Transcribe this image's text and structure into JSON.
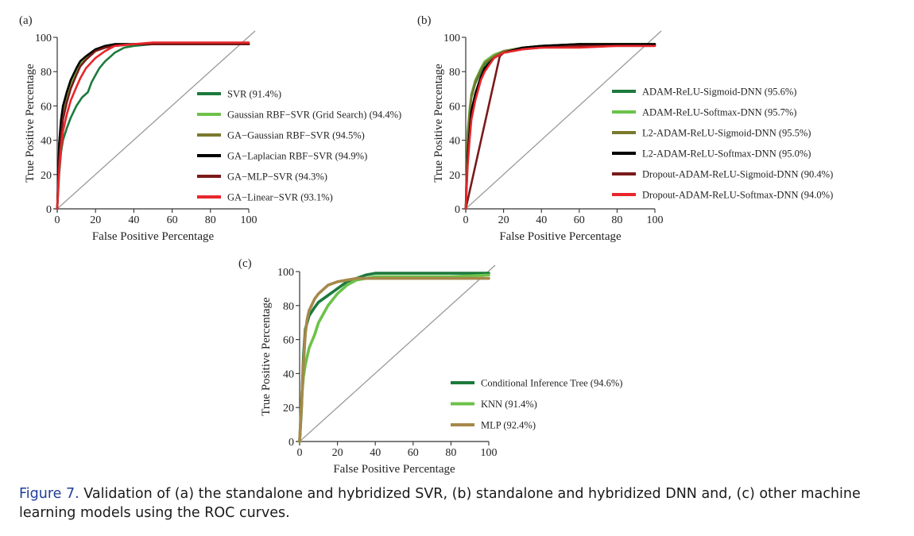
{
  "caption": {
    "label": "Figure 7.",
    "text": "Validation of (a) the standalone and hybridized SVR, (b) standalone and hybridized DNN and, (c) other machine learning models using the ROC curves."
  },
  "chart_data": [
    {
      "type": "line",
      "panel_label": "(a)",
      "xlabel": "False Positive Percentage",
      "ylabel": "True Positive Percentage",
      "xlim": [
        0,
        100
      ],
      "ylim": [
        0,
        100
      ],
      "xticks": [
        0,
        20,
        40,
        60,
        80,
        100
      ],
      "yticks": [
        0,
        20,
        40,
        60,
        80,
        100
      ],
      "diagonal": true,
      "legend_position": "right",
      "series": [
        {
          "name": "SVR (91.4%)",
          "color": "#1c7a3c",
          "x": [
            0,
            1,
            2,
            3,
            5,
            7,
            10,
            13,
            16,
            18,
            20,
            22,
            25,
            28,
            30,
            35,
            40,
            50,
            60,
            70,
            80,
            90,
            100
          ],
          "y": [
            0,
            20,
            33,
            40,
            47,
            53,
            60,
            65,
            68,
            74,
            78,
            82,
            86,
            89,
            91,
            94,
            95,
            96,
            96,
            96,
            96,
            96,
            96
          ]
        },
        {
          "name": "Gaussian RBF−SVR (Grid Search) (94.4%)",
          "color": "#6cc24a",
          "x": [
            0,
            1,
            2,
            3,
            5,
            7,
            10,
            12,
            15,
            20,
            25,
            30,
            40,
            50,
            60,
            80,
            100
          ],
          "y": [
            0,
            30,
            45,
            55,
            65,
            72,
            80,
            84,
            88,
            92,
            94,
            95,
            96,
            96,
            96,
            96,
            96
          ]
        },
        {
          "name": "GA−Gaussian RBF−SVR (94.5%)",
          "color": "#7a7a2e",
          "x": [
            0,
            1,
            2,
            3,
            5,
            7,
            10,
            12,
            15,
            20,
            25,
            30,
            40,
            50,
            60,
            80,
            100
          ],
          "y": [
            0,
            32,
            47,
            58,
            68,
            75,
            82,
            86,
            89,
            93,
            95,
            96,
            96,
            96,
            96,
            96,
            96
          ]
        },
        {
          "name": "GA−Laplacian RBF−SVR (94.9%)",
          "color": "#000000",
          "x": [
            0,
            1,
            2,
            3,
            5,
            7,
            10,
            12,
            15,
            20,
            25,
            30,
            40,
            50,
            60,
            80,
            100
          ],
          "y": [
            0,
            38,
            52,
            60,
            68,
            75,
            82,
            86,
            89,
            93,
            95,
            96,
            96,
            96,
            96,
            96,
            96
          ]
        },
        {
          "name": "GA−MLP−SVR (94.3%)",
          "color": "#7a1a1a",
          "x": [
            0,
            1,
            2,
            3,
            5,
            7,
            10,
            12,
            15,
            20,
            25,
            30,
            40,
            50,
            60,
            80,
            100
          ],
          "y": [
            0,
            28,
            42,
            52,
            62,
            70,
            78,
            83,
            87,
            92,
            94,
            95,
            96,
            96,
            96,
            96,
            96
          ]
        },
        {
          "name": "GA−Linear−SVR (93.1%)",
          "color": "#e8262b",
          "x": [
            0,
            1,
            2,
            3,
            5,
            7,
            10,
            12,
            15,
            20,
            25,
            30,
            40,
            50,
            60,
            80,
            100
          ],
          "y": [
            0,
            22,
            35,
            45,
            55,
            63,
            71,
            76,
            82,
            88,
            92,
            95,
            96,
            97,
            97,
            97,
            97
          ]
        }
      ]
    },
    {
      "type": "line",
      "panel_label": "(b)",
      "xlabel": "False Positive Percentage",
      "ylabel": "True Positive Percentage",
      "xlim": [
        0,
        100
      ],
      "ylim": [
        0,
        100
      ],
      "xticks": [
        0,
        20,
        40,
        60,
        80,
        100
      ],
      "yticks": [
        0,
        20,
        40,
        60,
        80,
        100
      ],
      "diagonal": true,
      "legend_position": "right",
      "series": [
        {
          "name": "ADAM-ReLU-Sigmoid-DNN (95.6%)",
          "color": "#1c7a3c",
          "x": [
            0,
            1,
            2,
            3,
            5,
            8,
            10,
            15,
            20,
            30,
            40,
            60,
            80,
            100
          ],
          "y": [
            0,
            40,
            55,
            65,
            73,
            80,
            84,
            89,
            92,
            94,
            95,
            96,
            96,
            96
          ]
        },
        {
          "name": "ADAM-ReLU-Softmax-DNN (95.7%)",
          "color": "#6cc24a",
          "x": [
            0,
            1,
            2,
            3,
            5,
            8,
            10,
            15,
            20,
            30,
            40,
            60,
            80,
            100
          ],
          "y": [
            0,
            45,
            58,
            67,
            75,
            82,
            86,
            90,
            92,
            94,
            95,
            96,
            96,
            96
          ]
        },
        {
          "name": "L2-ADAM-ReLU-Sigmoid-DNN (95.5%)",
          "color": "#7a7a2e",
          "x": [
            0,
            1,
            2,
            3,
            5,
            8,
            10,
            15,
            20,
            30,
            40,
            60,
            80,
            100
          ],
          "y": [
            0,
            42,
            56,
            66,
            74,
            81,
            85,
            89,
            92,
            94,
            95,
            96,
            96,
            96
          ]
        },
        {
          "name": "L2-ADAM-ReLU-Softmax-DNN (95.0%)",
          "color": "#000000",
          "x": [
            0,
            1,
            2,
            3,
            5,
            8,
            10,
            15,
            20,
            30,
            40,
            60,
            80,
            100
          ],
          "y": [
            0,
            30,
            45,
            57,
            67,
            77,
            82,
            88,
            91,
            94,
            95,
            96,
            96,
            96
          ]
        },
        {
          "name": "Dropout-ADAM-ReLU-Sigmoid-DNN (90.4%)",
          "color": "#7a1a1a",
          "x": [
            0,
            18,
            20,
            30,
            40,
            60,
            80,
            100
          ],
          "y": [
            0,
            89,
            91,
            93,
            94,
            95,
            95,
            95
          ]
        },
        {
          "name": "Dropout-ADAM-ReLU-Softmax-DNN (94.0%)",
          "color": "#e8262b",
          "x": [
            0,
            1,
            2,
            3,
            5,
            8,
            10,
            15,
            20,
            30,
            40,
            60,
            80,
            100
          ],
          "y": [
            0,
            25,
            40,
            52,
            63,
            75,
            80,
            88,
            91,
            93,
            94,
            94,
            95,
            95
          ]
        }
      ]
    },
    {
      "type": "line",
      "panel_label": "(c)",
      "xlabel": "False Positive Percentage",
      "ylabel": "True Positive Percentage",
      "xlim": [
        0,
        100
      ],
      "ylim": [
        0,
        100
      ],
      "xticks": [
        0,
        20,
        40,
        60,
        80,
        100
      ],
      "yticks": [
        0,
        20,
        40,
        60,
        80,
        100
      ],
      "diagonal": true,
      "legend_position": "right",
      "series": [
        {
          "name": "Conditional Inference Tree (94.6%)",
          "color": "#1c7a3c",
          "x": [
            0,
            1,
            2,
            3,
            4,
            5,
            8,
            10,
            15,
            20,
            25,
            30,
            35,
            40,
            50,
            60,
            80,
            100
          ],
          "y": [
            0,
            20,
            50,
            66,
            70,
            74,
            79,
            82,
            86,
            90,
            94,
            96,
            98,
            99,
            99,
            99,
            99,
            99
          ]
        },
        {
          "name": "KNN (91.4%)",
          "color": "#6cc24a",
          "x": [
            0,
            1,
            2,
            3,
            4,
            5,
            8,
            10,
            15,
            20,
            25,
            30,
            35,
            40,
            50,
            60,
            80,
            100
          ],
          "y": [
            0,
            25,
            38,
            45,
            50,
            55,
            63,
            70,
            80,
            87,
            92,
            95,
            96,
            97,
            97,
            97,
            97,
            98
          ]
        },
        {
          "name": "MLP (92.4%)",
          "color": "#a6884a",
          "x": [
            0,
            1,
            2,
            3,
            4,
            5,
            8,
            10,
            15,
            20,
            25,
            30,
            35,
            40,
            50,
            60,
            80,
            100
          ],
          "y": [
            0,
            22,
            45,
            63,
            72,
            77,
            84,
            87,
            92,
            94,
            95,
            96,
            96,
            96,
            96,
            96,
            96,
            96
          ]
        }
      ]
    }
  ]
}
